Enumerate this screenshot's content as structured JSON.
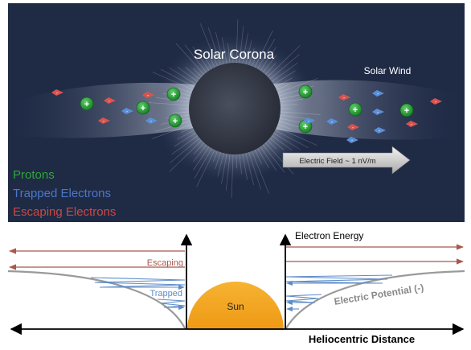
{
  "top_panel": {
    "title": "Solar Corona",
    "wind_label": "Solar Wind",
    "field_label": "Electric Field ~ 1 nV/m",
    "proton_symbol": "+",
    "electron_symbol": "-",
    "legend": [
      {
        "label": "Protons",
        "color": "#2fa53a"
      },
      {
        "label": "Trapped Electrons",
        "color": "#4a78c8"
      },
      {
        "label": "Escaping Electrons",
        "color": "#c84a46"
      }
    ]
  },
  "bottom_panel": {
    "y_axis_label": "Electron Energy",
    "x_axis_label": "Heliocentric Distance",
    "sun_label": "Sun",
    "escaping_label": "Escaping",
    "trapped_label": "Trapped",
    "potential_label": "Electric Potential (-)"
  },
  "colors": {
    "sky": "#1f2a45",
    "proton": "#1f9a2e",
    "trapped_electron": "#5b8fd8",
    "escaping_electron": "#d9544f",
    "escaping_arrow": "#a8584f",
    "trapped_arrow": "#5d8cc8",
    "sun_fill": "#f0a21f",
    "potential_curve": "#9a9a9a"
  }
}
